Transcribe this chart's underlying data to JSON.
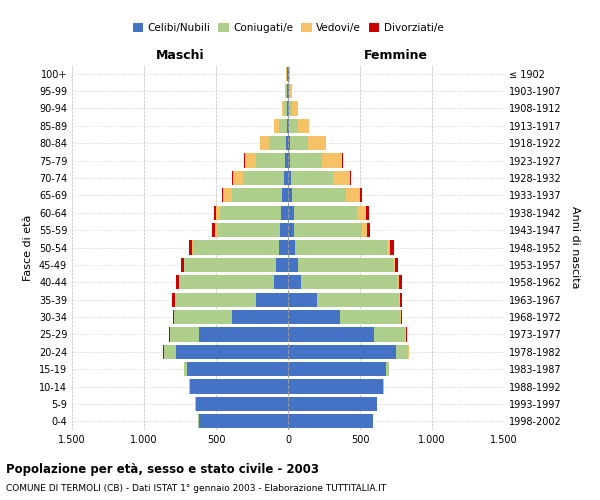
{
  "age_groups": [
    "0-4",
    "5-9",
    "10-14",
    "15-19",
    "20-24",
    "25-29",
    "30-34",
    "35-39",
    "40-44",
    "45-49",
    "50-54",
    "55-59",
    "60-64",
    "65-69",
    "70-74",
    "75-79",
    "80-84",
    "85-89",
    "90-94",
    "95-99",
    "100+"
  ],
  "birth_years": [
    "1998-2002",
    "1993-1997",
    "1988-1992",
    "1983-1987",
    "1978-1982",
    "1973-1977",
    "1968-1972",
    "1963-1967",
    "1958-1962",
    "1953-1957",
    "1948-1952",
    "1943-1947",
    "1938-1942",
    "1933-1937",
    "1928-1932",
    "1923-1927",
    "1918-1922",
    "1913-1917",
    "1908-1912",
    "1903-1907",
    "≤ 1902"
  ],
  "male_celibi": [
    620,
    640,
    680,
    700,
    780,
    620,
    390,
    220,
    100,
    80,
    60,
    55,
    50,
    40,
    30,
    20,
    15,
    10,
    8,
    5,
    5
  ],
  "male_coniugati": [
    3,
    4,
    8,
    20,
    80,
    200,
    400,
    560,
    650,
    640,
    600,
    440,
    420,
    350,
    280,
    200,
    120,
    50,
    20,
    8,
    5
  ],
  "male_vedovi": [
    0,
    0,
    0,
    1,
    2,
    2,
    2,
    3,
    5,
    5,
    10,
    15,
    30,
    60,
    70,
    80,
    60,
    35,
    15,
    5,
    2
  ],
  "male_divorziati": [
    0,
    0,
    0,
    1,
    3,
    5,
    10,
    20,
    20,
    20,
    15,
    15,
    15,
    10,
    8,
    5,
    2,
    0,
    0,
    0,
    0
  ],
  "female_celibi": [
    590,
    615,
    660,
    680,
    750,
    600,
    360,
    200,
    90,
    70,
    50,
    45,
    40,
    30,
    20,
    15,
    12,
    8,
    5,
    4,
    4
  ],
  "female_coniugati": [
    3,
    4,
    8,
    20,
    85,
    215,
    420,
    570,
    670,
    660,
    640,
    470,
    440,
    370,
    290,
    220,
    130,
    60,
    25,
    8,
    5
  ],
  "female_vedovi": [
    0,
    0,
    0,
    1,
    3,
    3,
    3,
    5,
    8,
    10,
    20,
    35,
    60,
    100,
    120,
    140,
    120,
    80,
    40,
    15,
    5
  ],
  "female_divorziati": [
    0,
    0,
    0,
    1,
    3,
    5,
    12,
    20,
    25,
    25,
    25,
    20,
    20,
    12,
    8,
    5,
    2,
    0,
    0,
    0,
    0
  ],
  "color_celibi": "#4472C4",
  "color_coniugati": "#AECF8B",
  "color_vedovi": "#F5C265",
  "color_divorziati": "#CC0000",
  "title": "Popolazione per età, sesso e stato civile - 2003",
  "subtitle": "COMUNE DI TERMOLI (CB) - Dati ISTAT 1° gennaio 2003 - Elaborazione TUTTITALIA.IT",
  "xlabel_left": "Maschi",
  "xlabel_right": "Femmine",
  "ylabel_left": "Fasce di età",
  "ylabel_right": "Anni di nascita",
  "xlim": 1500,
  "background_color": "#ffffff",
  "grid_color": "#bbbbbb"
}
